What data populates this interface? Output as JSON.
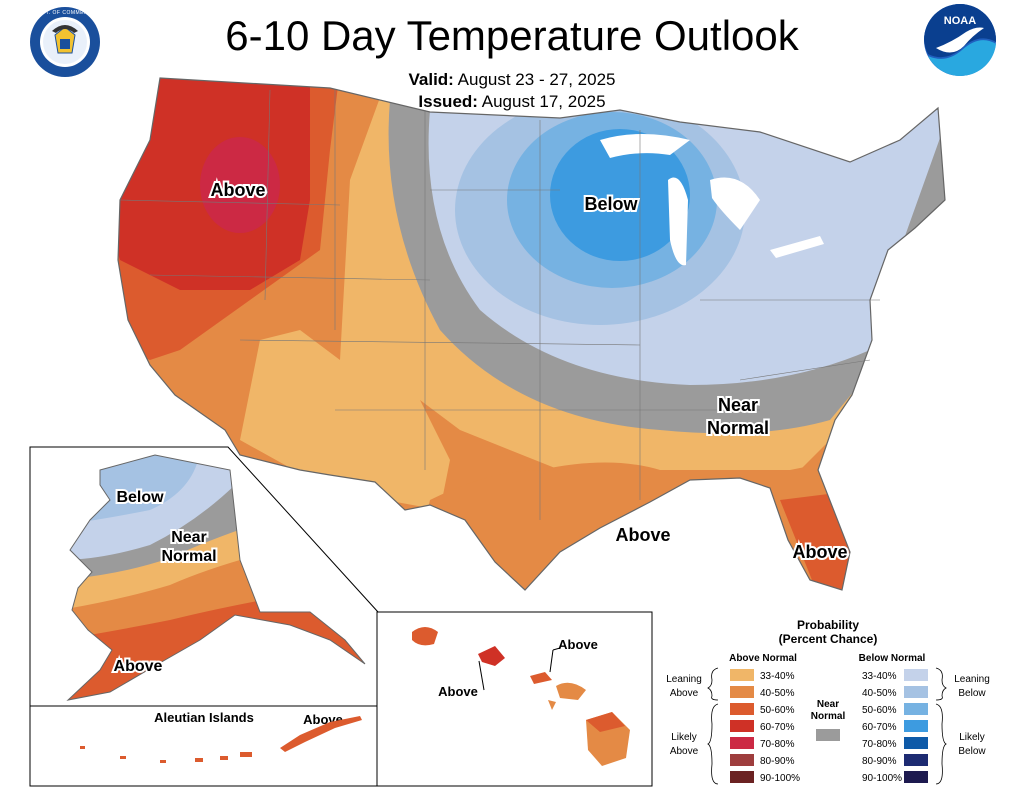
{
  "header": {
    "title": "6-10 Day Temperature Outlook",
    "valid_label": "Valid:",
    "valid_value": "August 23 - 27, 2025",
    "issued_label": "Issued:",
    "issued_value": "August 17, 2025",
    "left_logo": "department-of-commerce-seal",
    "left_logo_text": "DEPARTMENT OF COMMERCE · UNITED STATES OF AMERICA",
    "right_logo": "noaa-logo",
    "right_logo_text": "NOAA"
  },
  "map": {
    "labels": {
      "conus_above_west": "Above",
      "conus_below": "Below",
      "conus_near_1": "Near",
      "conus_near_2": "Normal",
      "conus_above_south": "Above",
      "conus_above_florida": "Above",
      "alaska_below": "Below",
      "alaska_near_1": "Near",
      "alaska_near_2": "Normal",
      "alaska_above": "Above",
      "aleutian_title": "Aleutian Islands",
      "aleutian_above": "Above",
      "hawaii_above_1": "Above",
      "hawaii_above_2": "Above"
    },
    "colors": {
      "above_33_40": "#f0b668",
      "above_40_50": "#e48a45",
      "above_50_60": "#dc5b2e",
      "above_60_70": "#cf3126",
      "above_70_80": "#cc2944",
      "above_80_90": "#9e3d3d",
      "above_90_100": "#6b2222",
      "near_normal": "#9b9b9b",
      "below_33_40": "#c4d2ea",
      "below_40_50": "#a5c2e3",
      "below_50_60": "#76b2e2",
      "below_60_70": "#3d9be0",
      "below_70_80": "#0e5aa8",
      "below_80_90": "#1d2b72",
      "below_90_100": "#1d1a4f",
      "land_outline": "#666666",
      "lakes": "#ffffff"
    }
  },
  "legend": {
    "title_1": "Probability",
    "title_2": "(Percent Chance)",
    "above_header": "Above Normal",
    "below_header": "Below Normal",
    "near_1": "Near",
    "near_2": "Normal",
    "leaning_above_1": "Leaning",
    "leaning_above_2": "Above",
    "likely_above_1": "Likely",
    "likely_above_2": "Above",
    "leaning_below_1": "Leaning",
    "leaning_below_2": "Below",
    "likely_below_1": "Likely",
    "likely_below_2": "Below",
    "above_ranges": [
      "33-40%",
      "40-50%",
      "50-60%",
      "60-70%",
      "70-80%",
      "80-90%",
      "90-100%"
    ],
    "below_ranges": [
      "33-40%",
      "40-50%",
      "50-60%",
      "60-70%",
      "70-80%",
      "80-90%",
      "90-100%"
    ]
  }
}
